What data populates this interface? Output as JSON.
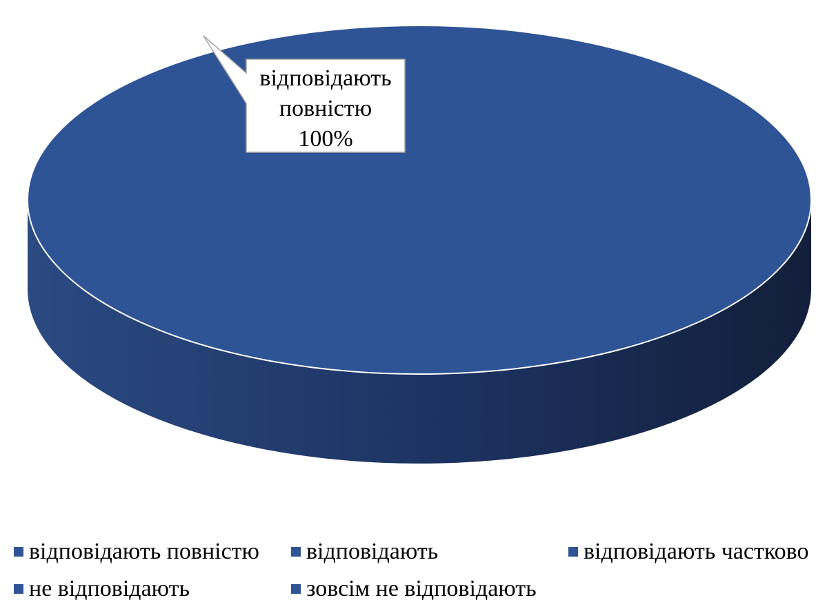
{
  "chart_data": {
    "type": "pie",
    "style": "3d",
    "categories": [
      "відповідають повністю",
      "відповідають",
      "відповідають частково",
      "не відповідають",
      "зовсім не відповідають"
    ],
    "values": [
      100,
      0,
      0,
      0,
      0
    ],
    "unit": "%",
    "data_labels": [
      {
        "category_index": 0,
        "lines": [
          "відповідають",
          "повністю",
          "100%"
        ]
      }
    ],
    "legend": {
      "position": "bottom",
      "entries": [
        "відповідають повністю",
        "відповідають",
        "відповідають частково",
        "не відповідають",
        "зовсім не відповідають"
      ]
    },
    "colors": {
      "top": "#2f5496",
      "side_light": "#2b4a82",
      "side_dark": "#131f3b",
      "edge": "#ffffff",
      "legend_swatch": "#2f5496"
    }
  }
}
